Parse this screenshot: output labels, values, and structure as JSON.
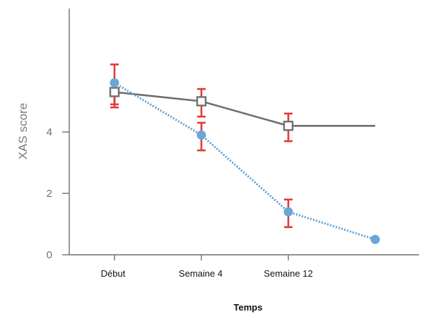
{
  "chart_data": {
    "type": "line",
    "title": "",
    "xlabel": "Temps",
    "ylabel": "XAS score",
    "categories": [
      "Début",
      "Semaine 4",
      "Semaine 12",
      ""
    ],
    "yticks": [
      0,
      2,
      4
    ],
    "ylim": [
      0,
      8.2
    ],
    "grid": false,
    "legend": "none",
    "series": [
      {
        "marker": "square-open",
        "line_style": "solid",
        "line_color": "#6f6f6f",
        "marker_stroke": "#6f6f6f",
        "values": [
          5.3,
          5.0,
          4.2,
          4.2
        ],
        "error_low": [
          4.8,
          4.5,
          3.7,
          null
        ],
        "error_high": [
          5.6,
          5.4,
          4.6,
          null
        ],
        "error_color": "#e03a3a"
      },
      {
        "marker": "circle-filled",
        "line_style": "dotted",
        "line_color": "#5b9fd3",
        "marker_fill": "#6aa6d6",
        "values": [
          5.6,
          3.9,
          1.4,
          0.5
        ],
        "error_low": [
          4.9,
          3.4,
          0.9,
          null
        ],
        "error_high": [
          6.2,
          4.3,
          1.8,
          null
        ],
        "error_color": "#e03a3a"
      }
    ]
  }
}
